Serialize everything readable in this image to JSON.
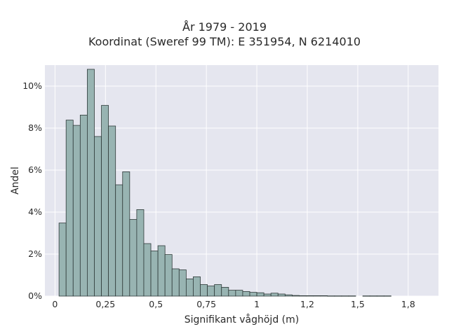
{
  "chart_data": {
    "type": "bar",
    "title": "År 1979 - 2019",
    "subtitle": "Koordinat (Sweref 99 TM): E 351954, N 6214010",
    "xlabel": "Signifikant våghöjd (m)",
    "ylabel": "Andel",
    "xlim": [
      -0.05,
      1.9
    ],
    "ylim": [
      0,
      11
    ],
    "x_ticks": [
      0,
      0.25,
      0.5,
      0.75,
      1,
      1.25,
      1.5,
      1.75
    ],
    "x_tick_labels": [
      "0",
      "0,25",
      "0,5",
      "0,75",
      "1",
      "1,2",
      "1,5",
      "1,8"
    ],
    "y_ticks": [
      0,
      2,
      4,
      6,
      8,
      10
    ],
    "y_tick_labels": [
      "0%",
      "2%",
      "4%",
      "6%",
      "8%",
      "10%"
    ],
    "grid": true,
    "bin_width": 0.035,
    "bin_start": 0.02,
    "values": [
      3.48,
      8.38,
      8.13,
      8.62,
      10.8,
      7.6,
      9.08,
      8.1,
      5.3,
      5.92,
      3.65,
      4.12,
      2.5,
      2.15,
      2.4,
      1.98,
      1.3,
      1.25,
      0.82,
      0.92,
      0.55,
      0.48,
      0.55,
      0.42,
      0.28,
      0.28,
      0.22,
      0.18,
      0.16,
      0.1,
      0.14,
      0.1,
      0.06,
      0.03,
      0.02,
      0.02,
      0.02,
      0.02,
      0.01,
      0.01,
      0.01,
      0.01,
      0,
      0.01,
      0.01,
      0.01,
      0.01
    ],
    "bar_color": "#98b4b2",
    "bar_edge_color": "#2f3a39",
    "plot_background": "#e5e6ef"
  }
}
